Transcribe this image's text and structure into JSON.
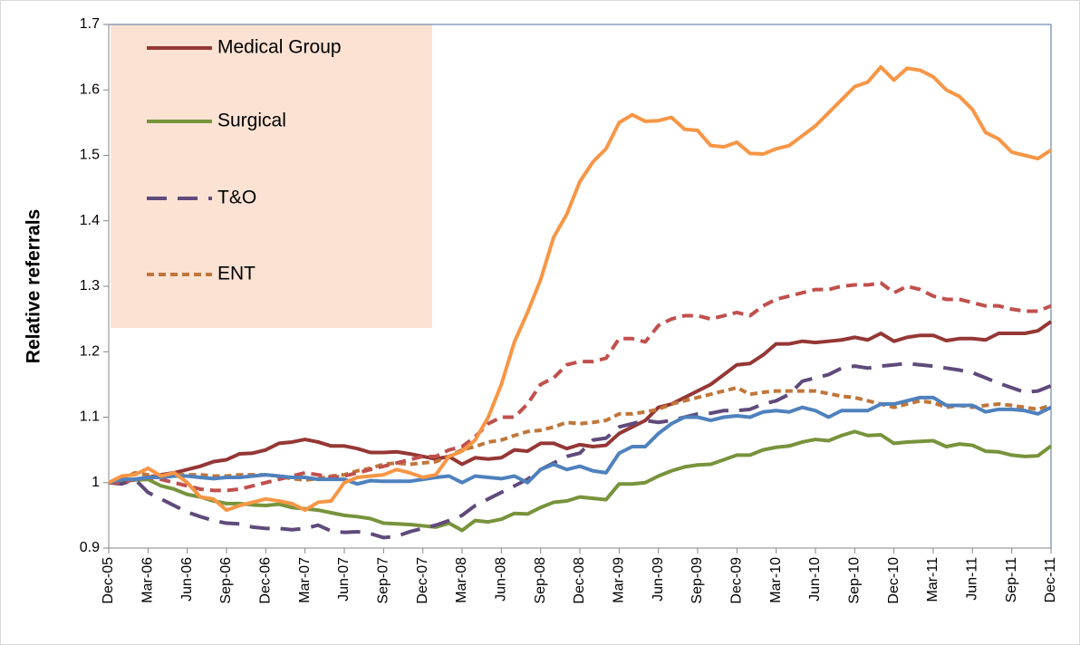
{
  "chart_data": {
    "type": "line",
    "ylabel": "Relative referrals",
    "categories": [
      "Dec-05",
      null,
      null,
      "Mar-06",
      null,
      null,
      "Jun-06",
      null,
      null,
      "Sep-06",
      null,
      null,
      "Dec-06",
      null,
      null,
      "Mar-07",
      null,
      null,
      "Jun-07",
      null,
      null,
      "Sep-07",
      null,
      null,
      "Dec-07",
      null,
      null,
      "Mar-08",
      null,
      null,
      "Jun-08",
      null,
      null,
      "Sep-08",
      null,
      null,
      "Dec-08",
      null,
      null,
      "Mar-09",
      null,
      null,
      "Jun-09",
      null,
      null,
      "Sep-09",
      null,
      null,
      "Dec-09",
      null,
      null,
      "Mar-10",
      null,
      null,
      "Jun-10",
      null,
      null,
      "Sep-10",
      null,
      null,
      "Dec-10",
      null,
      null,
      "Mar-11",
      null,
      null,
      "Jun-11",
      null,
      null,
      "Sep-11",
      null,
      null,
      "Dec-11"
    ],
    "ylim": [
      0.9,
      1.7
    ],
    "yticks": [
      0.9,
      1,
      1.1,
      1.2,
      1.3,
      1.4,
      1.5,
      1.6,
      1.7
    ],
    "grid": false,
    "legend": "upper left",
    "series": [
      {
        "name": "Medical Group",
        "color": "#953735",
        "dash": "solid",
        "values": [
          1.0,
          1.003,
          1.005,
          1.008,
          1.012,
          1.015,
          1.02,
          1.025,
          1.032,
          1.035,
          1.044,
          1.045,
          1.05,
          1.06,
          1.062,
          1.066,
          1.062,
          1.056,
          1.056,
          1.052,
          1.046,
          1.046,
          1.047,
          1.044,
          1.04,
          1.036,
          1.04,
          1.028,
          1.038,
          1.036,
          1.038,
          1.05,
          1.048,
          1.06,
          1.06,
          1.052,
          1.058,
          1.055,
          1.057,
          1.075,
          1.085,
          1.095,
          1.115,
          1.12,
          1.13,
          1.14,
          1.15,
          1.165,
          1.18,
          1.182,
          1.195,
          1.212,
          1.212,
          1.216,
          1.214,
          1.216,
          1.218,
          1.222,
          1.218,
          1.228,
          1.216,
          1.222,
          1.225,
          1.225,
          1.217,
          1.22,
          1.22,
          1.218,
          1.228,
          1.228,
          1.228,
          1.232,
          1.246
        ]
      },
      {
        "name": "Surgical",
        "color": "#77933c",
        "dash": "solid",
        "values": [
          1.0,
          1.002,
          1.004,
          1.005,
          0.995,
          0.99,
          0.982,
          0.978,
          0.972,
          0.968,
          0.968,
          0.966,
          0.965,
          0.967,
          0.962,
          0.96,
          0.958,
          0.954,
          0.95,
          0.948,
          0.945,
          0.938,
          0.937,
          0.936,
          0.934,
          0.932,
          0.938,
          0.927,
          0.942,
          0.94,
          0.944,
          0.953,
          0.952,
          0.962,
          0.97,
          0.972,
          0.978,
          0.976,
          0.974,
          0.998,
          0.998,
          1.0,
          1.01,
          1.018,
          1.024,
          1.027,
          1.028,
          1.035,
          1.042,
          1.042,
          1.05,
          1.054,
          1.056,
          1.062,
          1.066,
          1.064,
          1.072,
          1.078,
          1.072,
          1.073,
          1.06,
          1.062,
          1.063,
          1.064,
          1.055,
          1.059,
          1.057,
          1.048,
          1.047,
          1.042,
          1.04,
          1.041,
          1.056
        ]
      },
      {
        "name": "T&O",
        "color": "#604a7b",
        "dash": "long",
        "values": [
          1.0,
          0.998,
          1.005,
          0.985,
          0.975,
          0.965,
          0.955,
          0.948,
          0.942,
          0.938,
          0.937,
          0.932,
          0.93,
          0.93,
          0.928,
          0.93,
          0.935,
          0.926,
          0.924,
          0.925,
          0.922,
          0.916,
          0.918,
          0.925,
          0.93,
          0.935,
          0.942,
          0.95,
          0.965,
          0.975,
          0.985,
          0.995,
          1.005,
          1.02,
          1.03,
          1.04,
          1.045,
          1.065,
          1.068,
          1.085,
          1.09,
          1.095,
          1.092,
          1.095,
          1.1,
          1.105,
          1.106,
          1.11,
          1.11,
          1.112,
          1.12,
          1.125,
          1.135,
          1.155,
          1.16,
          1.165,
          1.175,
          1.178,
          1.175,
          1.178,
          1.18,
          1.182,
          1.18,
          1.178,
          1.175,
          1.172,
          1.168,
          1.16,
          1.152,
          1.145,
          1.138,
          1.14,
          1.148
        ]
      },
      {
        "name": "ENT",
        "color": "#c0763a",
        "dash": "short",
        "values": [
          1.0,
          1.005,
          1.015,
          1.012,
          1.01,
          1.012,
          1.012,
          1.012,
          1.01,
          1.01,
          1.012,
          1.012,
          1.012,
          1.01,
          1.006,
          1.004,
          1.006,
          1.01,
          1.012,
          1.018,
          1.022,
          1.028,
          1.03,
          1.028,
          1.03,
          1.032,
          1.04,
          1.05,
          1.055,
          1.062,
          1.065,
          1.072,
          1.078,
          1.08,
          1.085,
          1.092,
          1.09,
          1.092,
          1.095,
          1.105,
          1.105,
          1.108,
          1.112,
          1.12,
          1.125,
          1.13,
          1.135,
          1.14,
          1.145,
          1.135,
          1.138,
          1.14,
          1.14,
          1.14,
          1.14,
          1.136,
          1.132,
          1.13,
          1.125,
          1.12,
          1.115,
          1.12,
          1.125,
          1.122,
          1.115,
          1.118,
          1.115,
          1.118,
          1.12,
          1.118,
          1.115,
          1.112,
          1.118
        ]
      },
      {
        "color": "#c0504d",
        "dash": "medium",
        "values": [
          1.0,
          1.0,
          1.005,
          1.008,
          1.005,
          1.0,
          0.995,
          0.99,
          0.988,
          0.988,
          0.99,
          0.995,
          1.0,
          1.005,
          1.01,
          1.015,
          1.012,
          1.008,
          1.01,
          1.015,
          1.02,
          1.025,
          1.03,
          1.035,
          1.04,
          1.04,
          1.05,
          1.055,
          1.07,
          1.09,
          1.1,
          1.1,
          1.12,
          1.15,
          1.16,
          1.18,
          1.185,
          1.185,
          1.19,
          1.22,
          1.22,
          1.215,
          1.24,
          1.25,
          1.255,
          1.255,
          1.25,
          1.255,
          1.26,
          1.255,
          1.27,
          1.28,
          1.285,
          1.29,
          1.295,
          1.295,
          1.3,
          1.302,
          1.302,
          1.305,
          1.29,
          1.3,
          1.295,
          1.285,
          1.28,
          1.28,
          1.275,
          1.27,
          1.27,
          1.265,
          1.262,
          1.262,
          1.27
        ]
      },
      {
        "color": "#4f81bd",
        "dash": "solid",
        "values": [
          1.0,
          1.005,
          1.005,
          1.008,
          1.008,
          1.01,
          1.01,
          1.008,
          1.006,
          1.008,
          1.008,
          1.01,
          1.012,
          1.01,
          1.008,
          1.008,
          1.005,
          1.005,
          1.005,
          0.998,
          1.003,
          1.002,
          1.002,
          1.002,
          1.005,
          1.008,
          1.01,
          1.0,
          1.01,
          1.008,
          1.006,
          1.01,
          1.0,
          1.02,
          1.028,
          1.02,
          1.025,
          1.018,
          1.015,
          1.045,
          1.055,
          1.055,
          1.075,
          1.09,
          1.1,
          1.1,
          1.095,
          1.1,
          1.102,
          1.1,
          1.108,
          1.11,
          1.108,
          1.115,
          1.11,
          1.1,
          1.11,
          1.11,
          1.11,
          1.12,
          1.12,
          1.125,
          1.13,
          1.13,
          1.118,
          1.118,
          1.118,
          1.108,
          1.112,
          1.112,
          1.11,
          1.105,
          1.115
        ]
      },
      {
        "color": "#f79646",
        "dash": "solid",
        "values": [
          1.0,
          1.01,
          1.012,
          1.022,
          1.01,
          1.015,
          1.0,
          0.978,
          0.975,
          0.958,
          0.965,
          0.97,
          0.975,
          0.972,
          0.968,
          0.958,
          0.97,
          0.972,
          1.0,
          1.008,
          1.01,
          1.012,
          1.02,
          1.015,
          1.008,
          1.012,
          1.04,
          1.048,
          1.065,
          1.1,
          1.15,
          1.215,
          1.26,
          1.31,
          1.375,
          1.41,
          1.46,
          1.49,
          1.51,
          1.55,
          1.562,
          1.552,
          1.553,
          1.558,
          1.54,
          1.538,
          1.515,
          1.513,
          1.52,
          1.503,
          1.502,
          1.51,
          1.515,
          1.53,
          1.545,
          1.565,
          1.585,
          1.605,
          1.612,
          1.635,
          1.615,
          1.633,
          1.63,
          1.62,
          1.6,
          1.59,
          1.57,
          1.535,
          1.525,
          1.505,
          1.5,
          1.495,
          1.508
        ]
      }
    ]
  }
}
